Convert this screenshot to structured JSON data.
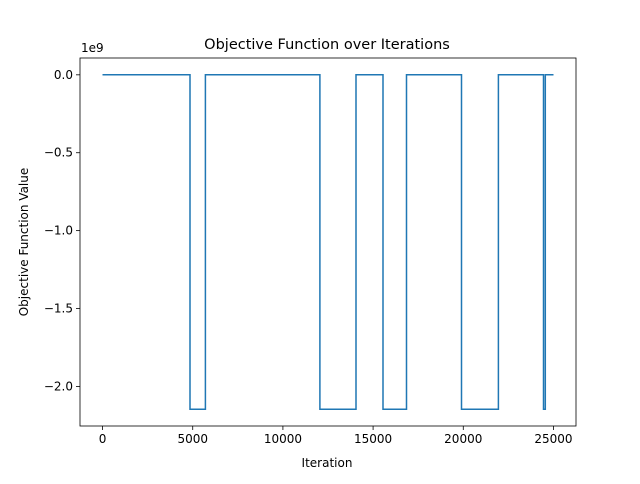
{
  "chart_data": {
    "type": "line",
    "title": "Objective Function over Iterations",
    "xlabel": "Iteration",
    "ylabel": "Objective Function Value",
    "offset_label": "1e9",
    "xlim": [
      -1250,
      26250
    ],
    "ylim": [
      -2.254,
      0.108
    ],
    "x_ticks": [
      0,
      5000,
      10000,
      15000,
      20000,
      25000
    ],
    "x_tick_labels": [
      "0",
      "5000",
      "10000",
      "15000",
      "20000",
      "25000"
    ],
    "y_ticks": [
      0.0,
      -0.5,
      -1.0,
      -1.5,
      -2.0
    ],
    "y_tick_labels": [
      "0.0",
      "−0.5",
      "−1.0",
      "−1.5",
      "−2.0"
    ],
    "grid": false,
    "legend": "none",
    "series": [
      {
        "color": "#1f77b4",
        "x": [
          0,
          4850,
          4850,
          5700,
          5700,
          12050,
          12050,
          14050,
          14050,
          15550,
          15550,
          16850,
          16850,
          19900,
          19900,
          21950,
          21950,
          24450,
          24450,
          24550,
          24550,
          25000
        ],
        "y": [
          0.0,
          0.0,
          -2.147,
          -2.147,
          0.0,
          0.0,
          -2.147,
          -2.147,
          0.0,
          0.0,
          -2.147,
          -2.147,
          0.0,
          0.0,
          -2.147,
          -2.147,
          0.0,
          0.0,
          -2.147,
          -2.147,
          0.0,
          0.0
        ]
      }
    ]
  }
}
